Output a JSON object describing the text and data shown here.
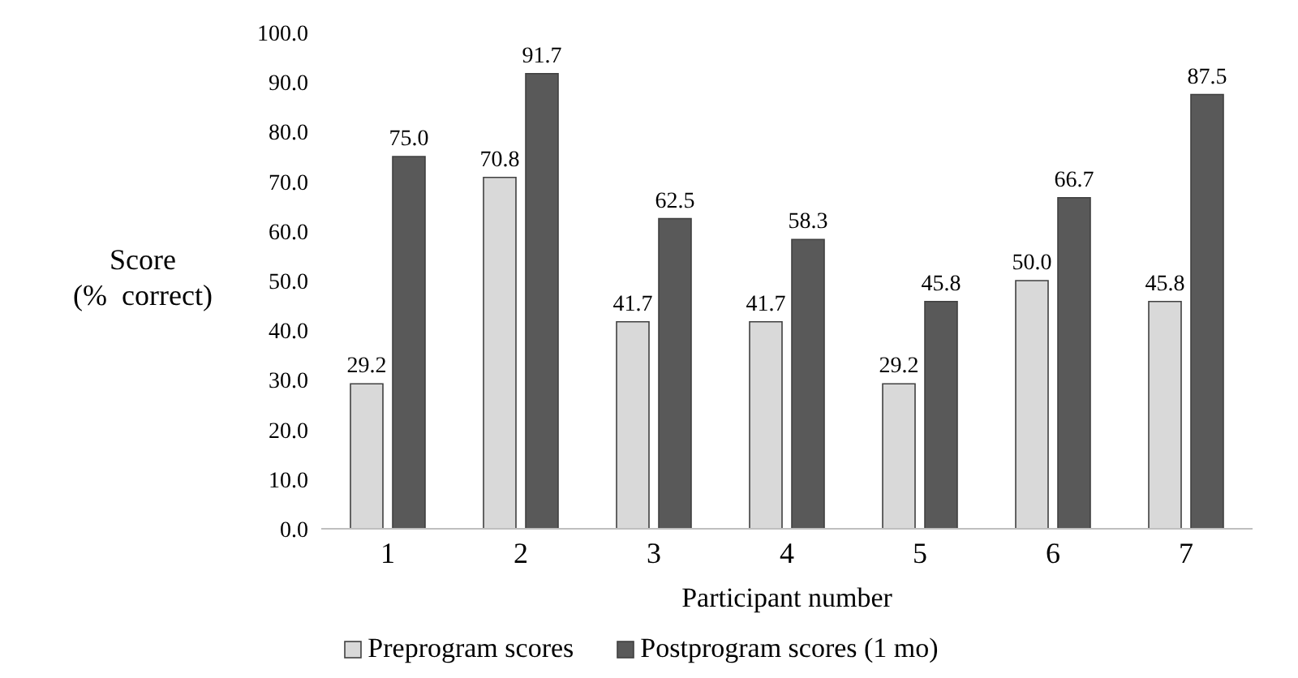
{
  "chart_data": {
    "type": "bar",
    "xlabel": "Participant number",
    "ylabel": "Score\n(%  correct)",
    "categories": [
      "1",
      "2",
      "3",
      "4",
      "5",
      "6",
      "7"
    ],
    "series": [
      {
        "name": "Preprogram scores",
        "color": "#d9d9d9",
        "values": [
          29.2,
          70.8,
          41.7,
          41.7,
          29.2,
          50.0,
          45.8
        ],
        "value_labels": [
          "29.2",
          "70.8",
          "41.7",
          "41.7",
          "29.2",
          "50.0",
          "45.8"
        ]
      },
      {
        "name": "Postprogram scores (1 mo)",
        "color": "#595959",
        "values": [
          75.0,
          91.7,
          62.5,
          58.3,
          45.8,
          66.7,
          87.5
        ],
        "value_labels": [
          "75.0",
          "91.7",
          "62.5",
          "58.3",
          "45.8",
          "66.7",
          "87.5"
        ]
      }
    ],
    "ylim": [
      0,
      100
    ],
    "yticks": [
      {
        "value": 0,
        "label": "0.0"
      },
      {
        "value": 10,
        "label": "10.0"
      },
      {
        "value": 20,
        "label": "20.0"
      },
      {
        "value": 30,
        "label": "30.0"
      },
      {
        "value": 40,
        "label": "40.0"
      },
      {
        "value": 50,
        "label": "50.0"
      },
      {
        "value": 60,
        "label": "60.0"
      },
      {
        "value": 70,
        "label": "70.0"
      },
      {
        "value": 80,
        "label": "80.0"
      },
      {
        "value": 90,
        "label": "90.0"
      },
      {
        "value": 100,
        "label": "100.0"
      }
    ],
    "grid": false,
    "legend": "bottom"
  }
}
